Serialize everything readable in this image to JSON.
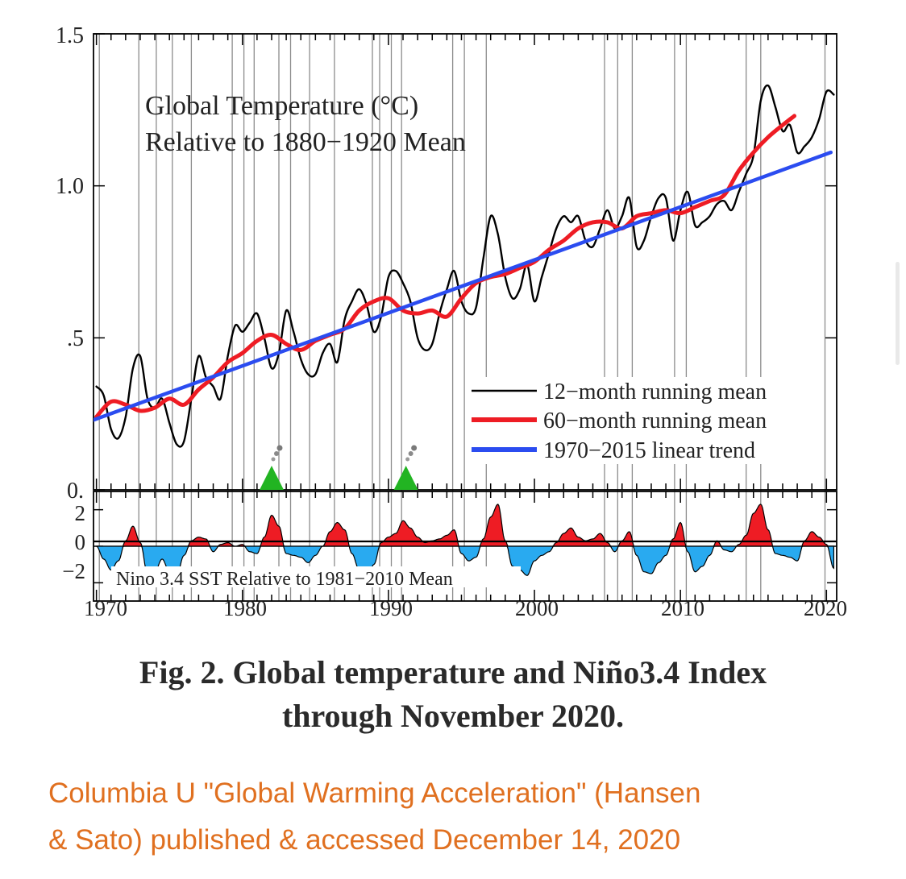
{
  "figure": {
    "caption_line1": "Fig. 2. Global temperature and Niño3.4 Index",
    "caption_line2": "through November 2020.",
    "source_line1": "Columbia U \"Global Warming Acceleration\" (Hansen",
    "source_line2": "& Sato) published & accessed December 14, 2020",
    "source_color": "#e07020"
  },
  "chart_data": [
    {
      "type": "line",
      "title_line1": "Global Temperature (°C)",
      "title_line2": "Relative to 1880−1920 Mean",
      "xlabel": "",
      "ylabel": "",
      "xlim": [
        1969.8,
        2020.7
      ],
      "ylim": [
        0.0,
        1.5
      ],
      "y_ticks": [
        0.0,
        0.5,
        1.0,
        1.5
      ],
      "y_tick_labels": [
        "0.",
        ".5",
        "1.0",
        "1.5"
      ],
      "x_ticks": [
        1970,
        1980,
        1990,
        2000,
        2010,
        2020
      ],
      "x_tick_labels": [
        "1970",
        "1980",
        "1990",
        "2000",
        "2010",
        "2020"
      ],
      "legend_position": "lower-right",
      "volcano_markers": [
        1982.0,
        1991.2
      ],
      "volcano_color": "#22b422",
      "event_lines": [
        1970.2,
        1972.9,
        1974.1,
        1975.2,
        1976.5,
        1979.3,
        1980.1,
        1980.8,
        1982.5,
        1983.3,
        1984.6,
        1986.3,
        1988.9,
        1989.4,
        1990.2,
        1990.9,
        1994.4,
        1995.2,
        1996.7,
        2004.8,
        2005.7,
        2006.7,
        2009.6,
        2010.4,
        2014.5,
        2015.5,
        2019.9
      ],
      "series": [
        {
          "name": "12−month running mean",
          "color": "#000000",
          "x": [
            1970.0,
            1970.5,
            1971.0,
            1971.5,
            1972.0,
            1972.5,
            1973.0,
            1973.5,
            1974.0,
            1974.5,
            1975.0,
            1975.5,
            1976.0,
            1976.5,
            1977.0,
            1977.5,
            1978.0,
            1978.5,
            1979.0,
            1979.5,
            1980.0,
            1980.5,
            1981.0,
            1981.5,
            1982.0,
            1982.5,
            1983.0,
            1983.5,
            1984.0,
            1984.5,
            1985.0,
            1985.5,
            1986.0,
            1986.5,
            1987.0,
            1987.5,
            1988.0,
            1988.5,
            1989.0,
            1989.5,
            1990.0,
            1990.5,
            1991.0,
            1991.5,
            1992.0,
            1992.5,
            1993.0,
            1993.5,
            1994.0,
            1994.5,
            1995.0,
            1995.5,
            1996.0,
            1996.5,
            1997.0,
            1997.5,
            1998.0,
            1998.5,
            1999.0,
            1999.5,
            2000.0,
            2000.5,
            2001.0,
            2001.5,
            2002.0,
            2002.5,
            2003.0,
            2003.5,
            2004.0,
            2004.5,
            2005.0,
            2005.5,
            2006.0,
            2006.5,
            2007.0,
            2007.5,
            2008.0,
            2008.5,
            2009.0,
            2009.5,
            2010.0,
            2010.5,
            2011.0,
            2011.5,
            2012.0,
            2012.5,
            2013.0,
            2013.5,
            2014.0,
            2014.5,
            2015.0,
            2015.5,
            2016.0,
            2016.5,
            2017.0,
            2017.5,
            2018.0,
            2018.5,
            2019.0,
            2019.5,
            2020.0,
            2020.5
          ],
          "values": [
            0.34,
            0.31,
            0.2,
            0.17,
            0.24,
            0.4,
            0.44,
            0.3,
            0.27,
            0.3,
            0.22,
            0.15,
            0.16,
            0.3,
            0.44,
            0.37,
            0.34,
            0.3,
            0.44,
            0.54,
            0.52,
            0.55,
            0.58,
            0.5,
            0.4,
            0.45,
            0.59,
            0.52,
            0.43,
            0.38,
            0.38,
            0.45,
            0.48,
            0.42,
            0.56,
            0.62,
            0.66,
            0.61,
            0.52,
            0.57,
            0.7,
            0.72,
            0.68,
            0.62,
            0.5,
            0.46,
            0.48,
            0.58,
            0.66,
            0.72,
            0.62,
            0.58,
            0.6,
            0.76,
            0.9,
            0.84,
            0.7,
            0.63,
            0.66,
            0.74,
            0.62,
            0.7,
            0.78,
            0.86,
            0.9,
            0.88,
            0.9,
            0.82,
            0.8,
            0.86,
            0.92,
            0.86,
            0.9,
            0.96,
            0.8,
            0.82,
            0.9,
            0.96,
            0.96,
            0.82,
            0.92,
            0.98,
            0.87,
            0.88,
            0.9,
            0.94,
            0.95,
            0.92,
            0.98,
            1.04,
            1.1,
            1.28,
            1.33,
            1.26,
            1.18,
            1.2,
            1.11,
            1.13,
            1.16,
            1.22,
            1.31,
            1.3
          ]
        },
        {
          "name": "60−month running mean",
          "color": "#ee1c24",
          "x": [
            1970.0,
            1971.0,
            1972.0,
            1973.0,
            1974.0,
            1975.0,
            1976.0,
            1977.0,
            1978.0,
            1979.0,
            1980.0,
            1981.0,
            1982.0,
            1983.0,
            1984.0,
            1985.0,
            1986.0,
            1987.0,
            1988.0,
            1989.0,
            1990.0,
            1991.0,
            1992.0,
            1993.0,
            1994.0,
            1995.0,
            1996.0,
            1997.0,
            1998.0,
            1999.0,
            2000.0,
            2001.0,
            2002.0,
            2003.0,
            2004.0,
            2005.0,
            2006.0,
            2007.0,
            2008.0,
            2009.0,
            2010.0,
            2011.0,
            2012.0,
            2013.0,
            2014.0,
            2015.0,
            2016.0,
            2017.0,
            2017.8
          ],
          "values": [
            0.24,
            0.29,
            0.28,
            0.26,
            0.27,
            0.3,
            0.28,
            0.33,
            0.37,
            0.42,
            0.45,
            0.49,
            0.51,
            0.48,
            0.46,
            0.49,
            0.51,
            0.53,
            0.59,
            0.62,
            0.63,
            0.59,
            0.58,
            0.59,
            0.57,
            0.63,
            0.68,
            0.7,
            0.71,
            0.73,
            0.75,
            0.79,
            0.82,
            0.86,
            0.88,
            0.88,
            0.86,
            0.9,
            0.91,
            0.92,
            0.91,
            0.93,
            0.95,
            0.97,
            1.05,
            1.11,
            1.16,
            1.2,
            1.23
          ]
        },
        {
          "name": "1970−2015 linear trend",
          "color": "#2b4cf0",
          "x": [
            1969.8,
            2020.3
          ],
          "values": [
            0.23,
            1.11
          ]
        }
      ]
    },
    {
      "type": "area",
      "title": "Nino 3.4 SST Relative to 1981−2010 Mean",
      "xlim": [
        1969.8,
        2020.7
      ],
      "ylim": [
        -3.0,
        3.0
      ],
      "y_ticks": [
        -2,
        0,
        2
      ],
      "y_tick_labels": [
        "−2",
        "0",
        "2"
      ],
      "positive_color": "#ee1c24",
      "negative_color": "#29aaf0",
      "series": [
        {
          "name": "",
          "x": [
            1970.0,
            1970.5,
            1971.0,
            1971.5,
            1972.0,
            1972.5,
            1973.0,
            1973.5,
            1974.0,
            1974.5,
            1975.0,
            1975.5,
            1976.0,
            1976.5,
            1977.0,
            1977.5,
            1978.0,
            1978.5,
            1979.0,
            1979.5,
            1980.0,
            1980.5,
            1981.0,
            1981.5,
            1982.0,
            1982.5,
            1983.0,
            1983.5,
            1984.0,
            1984.5,
            1985.0,
            1985.5,
            1986.0,
            1986.5,
            1987.0,
            1987.5,
            1988.0,
            1988.5,
            1989.0,
            1989.5,
            1990.0,
            1990.5,
            1991.0,
            1991.5,
            1992.0,
            1992.5,
            1993.0,
            1993.5,
            1994.0,
            1994.5,
            1995.0,
            1995.5,
            1996.0,
            1996.5,
            1997.0,
            1997.5,
            1998.0,
            1998.5,
            1999.0,
            1999.5,
            2000.0,
            2000.5,
            2001.0,
            2001.5,
            2002.0,
            2002.5,
            2003.0,
            2003.5,
            2004.0,
            2004.5,
            2005.0,
            2005.5,
            2006.0,
            2006.5,
            2007.0,
            2007.5,
            2008.0,
            2008.5,
            2009.0,
            2009.5,
            2010.0,
            2010.5,
            2011.0,
            2011.5,
            2012.0,
            2012.5,
            2013.0,
            2013.5,
            2014.0,
            2014.5,
            2015.0,
            2015.5,
            2016.0,
            2016.5,
            2017.0,
            2017.5,
            2018.0,
            2018.5,
            2019.0,
            2019.5,
            2020.0,
            2020.5
          ],
          "values": [
            0.0,
            -0.7,
            -1.3,
            -0.8,
            0.3,
            1.1,
            0.2,
            -1.5,
            -1.4,
            -0.7,
            -1.4,
            -1.6,
            -0.5,
            0.3,
            0.5,
            0.4,
            -0.3,
            0.1,
            0.2,
            0.0,
            0.1,
            -0.3,
            -0.4,
            0.5,
            1.7,
            1.1,
            -0.4,
            -0.5,
            -0.6,
            -0.9,
            -0.5,
            0.0,
            0.8,
            1.3,
            0.9,
            -0.4,
            -1.3,
            -1.9,
            -1.0,
            0.2,
            0.5,
            0.7,
            1.4,
            1.0,
            0.5,
            0.2,
            0.3,
            0.4,
            0.6,
            0.9,
            -0.4,
            -0.8,
            -0.6,
            0.4,
            1.6,
            2.3,
            0.3,
            -1.1,
            -1.3,
            -1.6,
            -0.8,
            -0.5,
            -0.3,
            0.2,
            0.7,
            1.0,
            0.5,
            0.3,
            0.4,
            0.7,
            0.2,
            -0.3,
            0.3,
            0.8,
            -0.5,
            -1.4,
            -1.5,
            -0.9,
            -0.5,
            0.4,
            1.3,
            -0.3,
            -1.4,
            -1.1,
            -0.5,
            0.3,
            -0.2,
            -0.3,
            0.1,
            0.6,
            1.8,
            2.3,
            0.9,
            -0.4,
            -0.5,
            -0.6,
            -0.8,
            0.3,
            0.8,
            0.5,
            0.1,
            -1.2
          ]
        }
      ]
    }
  ]
}
